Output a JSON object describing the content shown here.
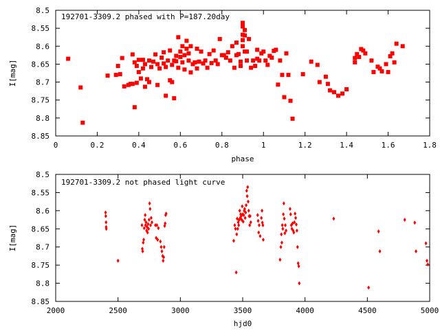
{
  "chart_data": [
    {
      "type": "scatter",
      "title": "192701-3309.2 phased with P=187.20day",
      "xlabel": "phase",
      "ylabel": "I[mag]",
      "xlim": [
        0,
        1.8
      ],
      "ylim": [
        8.5,
        8.85
      ],
      "y_inverted": true,
      "grid": false,
      "marker": "filled-square",
      "color": "#ff0000",
      "x_ticks": [
        "0",
        "0.2",
        "0.4",
        "0.6",
        "0.8",
        "1",
        "1.2",
        "1.4",
        "1.6",
        "1.8"
      ],
      "y_ticks": [
        "8.5",
        "8.55",
        "8.6",
        "8.65",
        "8.7",
        "8.75",
        "8.8",
        "8.85"
      ],
      "points": [
        [
          0.06,
          8.635
        ],
        [
          0.12,
          8.715
        ],
        [
          0.13,
          8.813
        ],
        [
          0.25,
          8.682
        ],
        [
          0.29,
          8.68
        ],
        [
          0.3,
          8.655
        ],
        [
          0.31,
          8.678
        ],
        [
          0.32,
          8.633
        ],
        [
          0.33,
          8.712
        ],
        [
          0.35,
          8.708
        ],
        [
          0.36,
          8.705
        ],
        [
          0.37,
          8.705
        ],
        [
          0.37,
          8.623
        ],
        [
          0.38,
          8.77
        ],
        [
          0.38,
          8.645
        ],
        [
          0.39,
          8.702
        ],
        [
          0.39,
          8.655
        ],
        [
          0.4,
          8.638
        ],
        [
          0.4,
          8.672
        ],
        [
          0.41,
          8.69
        ],
        [
          0.42,
          8.638
        ],
        [
          0.42,
          8.662
        ],
        [
          0.43,
          8.713
        ],
        [
          0.43,
          8.65
        ],
        [
          0.44,
          8.692
        ],
        [
          0.45,
          8.64
        ],
        [
          0.45,
          8.7
        ],
        [
          0.46,
          8.658
        ],
        [
          0.47,
          8.643
        ],
        [
          0.48,
          8.623
        ],
        [
          0.49,
          8.65
        ],
        [
          0.49,
          8.708
        ],
        [
          0.5,
          8.662
        ],
        [
          0.51,
          8.632
        ],
        [
          0.52,
          8.617
        ],
        [
          0.52,
          8.648
        ],
        [
          0.53,
          8.738
        ],
        [
          0.53,
          8.658
        ],
        [
          0.54,
          8.64
        ],
        [
          0.55,
          8.612
        ],
        [
          0.55,
          8.695
        ],
        [
          0.56,
          8.652
        ],
        [
          0.56,
          8.7
        ],
        [
          0.57,
          8.745
        ],
        [
          0.57,
          8.64
        ],
        [
          0.58,
          8.642
        ],
        [
          0.58,
          8.627
        ],
        [
          0.59,
          8.575
        ],
        [
          0.59,
          8.66
        ],
        [
          0.6,
          8.63
        ],
        [
          0.6,
          8.615
        ],
        [
          0.61,
          8.645
        ],
        [
          0.61,
          8.6
        ],
        [
          0.62,
          8.625
        ],
        [
          0.62,
          8.665
        ],
        [
          0.63,
          8.585
        ],
        [
          0.63,
          8.607
        ],
        [
          0.64,
          8.64
        ],
        [
          0.64,
          8.62
        ],
        [
          0.65,
          8.6
        ],
        [
          0.65,
          8.673
        ],
        [
          0.66,
          8.65
        ],
        [
          0.67,
          8.645
        ],
        [
          0.68,
          8.607
        ],
        [
          0.68,
          8.662
        ],
        [
          0.69,
          8.643
        ],
        [
          0.7,
          8.615
        ],
        [
          0.71,
          8.648
        ],
        [
          0.72,
          8.64
        ],
        [
          0.73,
          8.66
        ],
        [
          0.74,
          8.622
        ],
        [
          0.75,
          8.647
        ],
        [
          0.76,
          8.612
        ],
        [
          0.77,
          8.64
        ],
        [
          0.78,
          8.65
        ],
        [
          0.79,
          8.58
        ],
        [
          0.8,
          8.625
        ],
        [
          0.81,
          8.625
        ],
        [
          0.82,
          8.632
        ],
        [
          0.83,
          8.617
        ],
        [
          0.84,
          8.64
        ],
        [
          0.85,
          8.6
        ],
        [
          0.86,
          8.66
        ],
        [
          0.87,
          8.625
        ],
        [
          0.87,
          8.59
        ],
        [
          0.88,
          8.622
        ],
        [
          0.89,
          8.643
        ],
        [
          0.89,
          8.655
        ],
        [
          0.9,
          8.568
        ],
        [
          0.9,
          8.545
        ],
        [
          0.9,
          8.535
        ],
        [
          0.9,
          8.583
        ],
        [
          0.9,
          8.6
        ],
        [
          0.91,
          8.615
        ],
        [
          0.91,
          8.555
        ],
        [
          0.91,
          8.57
        ],
        [
          0.92,
          8.64
        ],
        [
          0.92,
          8.615
        ],
        [
          0.93,
          8.58
        ],
        [
          0.94,
          8.66
        ],
        [
          0.95,
          8.64
        ],
        [
          0.96,
          8.655
        ],
        [
          0.97,
          8.61
        ],
        [
          0.97,
          8.635
        ],
        [
          0.98,
          8.64
        ],
        [
          0.99,
          8.62
        ],
        [
          1.0,
          8.615
        ],
        [
          1.01,
          8.64
        ],
        [
          1.02,
          8.652
        ],
        [
          1.03,
          8.627
        ],
        [
          1.04,
          8.632
        ],
        [
          1.05,
          8.613
        ],
        [
          1.06,
          8.61
        ],
        [
          1.07,
          8.707
        ],
        [
          1.08,
          8.64
        ],
        [
          1.09,
          8.68
        ],
        [
          1.1,
          8.742
        ],
        [
          1.11,
          8.62
        ],
        [
          1.12,
          8.68
        ],
        [
          1.13,
          8.752
        ],
        [
          1.14,
          8.802
        ],
        [
          1.19,
          8.678
        ],
        [
          1.23,
          8.643
        ],
        [
          1.26,
          8.652
        ],
        [
          1.27,
          8.7
        ],
        [
          1.3,
          8.685
        ],
        [
          1.31,
          8.705
        ],
        [
          1.32,
          8.723
        ],
        [
          1.34,
          8.728
        ],
        [
          1.36,
          8.738
        ],
        [
          1.38,
          8.732
        ],
        [
          1.4,
          8.72
        ],
        [
          1.44,
          8.633
        ],
        [
          1.44,
          8.645
        ],
        [
          1.45,
          8.622
        ],
        [
          1.46,
          8.63
        ],
        [
          1.47,
          8.608
        ],
        [
          1.48,
          8.612
        ],
        [
          1.49,
          8.62
        ],
        [
          1.52,
          8.64
        ],
        [
          1.53,
          8.672
        ],
        [
          1.55,
          8.657
        ],
        [
          1.56,
          8.662
        ],
        [
          1.57,
          8.67
        ],
        [
          1.59,
          8.65
        ],
        [
          1.6,
          8.672
        ],
        [
          1.61,
          8.628
        ],
        [
          1.62,
          8.62
        ],
        [
          1.63,
          8.645
        ],
        [
          1.64,
          8.593
        ],
        [
          1.67,
          8.6
        ]
      ]
    },
    {
      "type": "scatter",
      "title": "192701-3309.2 not phased light curve",
      "xlabel": "hjd0",
      "ylabel": "I[mag]",
      "xlim": [
        2000,
        5000
      ],
      "ylim": [
        8.5,
        8.85
      ],
      "y_inverted": true,
      "grid": false,
      "marker": "filled-diamond",
      "color": "#ff0000",
      "x_ticks": [
        "2000",
        "2500",
        "3000",
        "3500",
        "4000",
        "4500",
        "5000"
      ],
      "y_ticks": [
        "8.5",
        "8.55",
        "8.6",
        "8.65",
        "8.7",
        "8.75",
        "8.8",
        "8.85"
      ],
      "points": [
        [
          2400,
          8.605
        ],
        [
          2402,
          8.615
        ],
        [
          2404,
          8.632
        ],
        [
          2405,
          8.645
        ],
        [
          2406,
          8.65
        ],
        [
          2500,
          8.738
        ],
        [
          2692,
          8.64
        ],
        [
          2695,
          8.705
        ],
        [
          2698,
          8.712
        ],
        [
          2702,
          8.688
        ],
        [
          2706,
          8.68
        ],
        [
          2710,
          8.648
        ],
        [
          2714,
          8.625
        ],
        [
          2718,
          8.612
        ],
        [
          2721,
          8.64
        ],
        [
          2725,
          8.632
        ],
        [
          2729,
          8.655
        ],
        [
          2733,
          8.645
        ],
        [
          2737,
          8.66
        ],
        [
          2741,
          8.637
        ],
        [
          2745,
          8.65
        ],
        [
          2749,
          8.625
        ],
        [
          2753,
          8.58
        ],
        [
          2757,
          8.595
        ],
        [
          2761,
          8.64
        ],
        [
          2766,
          8.62
        ],
        [
          2772,
          8.632
        ],
        [
          2800,
          8.64
        ],
        [
          2806,
          8.675
        ],
        [
          2812,
          8.64
        ],
        [
          2818,
          8.68
        ],
        [
          2824,
          8.648
        ],
        [
          2840,
          8.685
        ],
        [
          2846,
          8.7
        ],
        [
          2852,
          8.712
        ],
        [
          2858,
          8.725
        ],
        [
          2862,
          8.738
        ],
        [
          2866,
          8.728
        ],
        [
          2870,
          8.7
        ],
        [
          2874,
          8.642
        ],
        [
          2878,
          8.635
        ],
        [
          2882,
          8.612
        ],
        [
          2886,
          8.608
        ],
        [
          3428,
          8.683
        ],
        [
          3436,
          8.64
        ],
        [
          3442,
          8.65
        ],
        [
          3448,
          8.77
        ],
        [
          3452,
          8.665
        ],
        [
          3456,
          8.622
        ],
        [
          3460,
          8.65
        ],
        [
          3464,
          8.632
        ],
        [
          3468,
          8.64
        ],
        [
          3472,
          8.625
        ],
        [
          3476,
          8.6
        ],
        [
          3480,
          8.62
        ],
        [
          3484,
          8.61
        ],
        [
          3488,
          8.615
        ],
        [
          3492,
          8.625
        ],
        [
          3496,
          8.588
        ],
        [
          3500,
          8.61
        ],
        [
          3504,
          8.63
        ],
        [
          3508,
          8.612
        ],
        [
          3512,
          8.6
        ],
        [
          3516,
          8.595
        ],
        [
          3520,
          8.62
        ],
        [
          3524,
          8.605
        ],
        [
          3528,
          8.585
        ],
        [
          3532,
          8.545
        ],
        [
          3536,
          8.56
        ],
        [
          3540,
          8.535
        ],
        [
          3544,
          8.575
        ],
        [
          3548,
          8.6
        ],
        [
          3552,
          8.615
        ],
        [
          3556,
          8.64
        ],
        [
          3560,
          8.615
        ],
        [
          3565,
          8.632
        ],
        [
          3620,
          8.612
        ],
        [
          3624,
          8.628
        ],
        [
          3628,
          8.66
        ],
        [
          3632,
          8.64
        ],
        [
          3640,
          8.67
        ],
        [
          3650,
          8.62
        ],
        [
          3655,
          8.6
        ],
        [
          3658,
          8.633
        ],
        [
          3662,
          8.64
        ],
        [
          3665,
          8.68
        ],
        [
          3800,
          8.735
        ],
        [
          3806,
          8.7
        ],
        [
          3810,
          8.665
        ],
        [
          3814,
          8.688
        ],
        [
          3818,
          8.64
        ],
        [
          3822,
          8.65
        ],
        [
          3826,
          8.61
        ],
        [
          3830,
          8.58
        ],
        [
          3834,
          8.622
        ],
        [
          3838,
          8.662
        ],
        [
          3842,
          8.64
        ],
        [
          3848,
          8.655
        ],
        [
          3880,
          8.595
        ],
        [
          3885,
          8.61
        ],
        [
          3890,
          8.64
        ],
        [
          3895,
          8.65
        ],
        [
          3900,
          8.635
        ],
        [
          3905,
          8.655
        ],
        [
          3910,
          8.66
        ],
        [
          3915,
          8.632
        ],
        [
          3920,
          8.608
        ],
        [
          3925,
          8.62
        ],
        [
          3930,
          8.638
        ],
        [
          3935,
          8.655
        ],
        [
          3940,
          8.7
        ],
        [
          3945,
          8.745
        ],
        [
          3950,
          8.753
        ],
        [
          3954,
          8.8
        ],
        [
          4230,
          8.622
        ],
        [
          4510,
          8.812
        ],
        [
          4590,
          8.657
        ],
        [
          4600,
          8.712
        ],
        [
          4800,
          8.625
        ],
        [
          4880,
          8.633
        ],
        [
          4890,
          8.712
        ],
        [
          4970,
          8.69
        ],
        [
          4978,
          8.738
        ],
        [
          4985,
          8.748
        ]
      ]
    }
  ]
}
